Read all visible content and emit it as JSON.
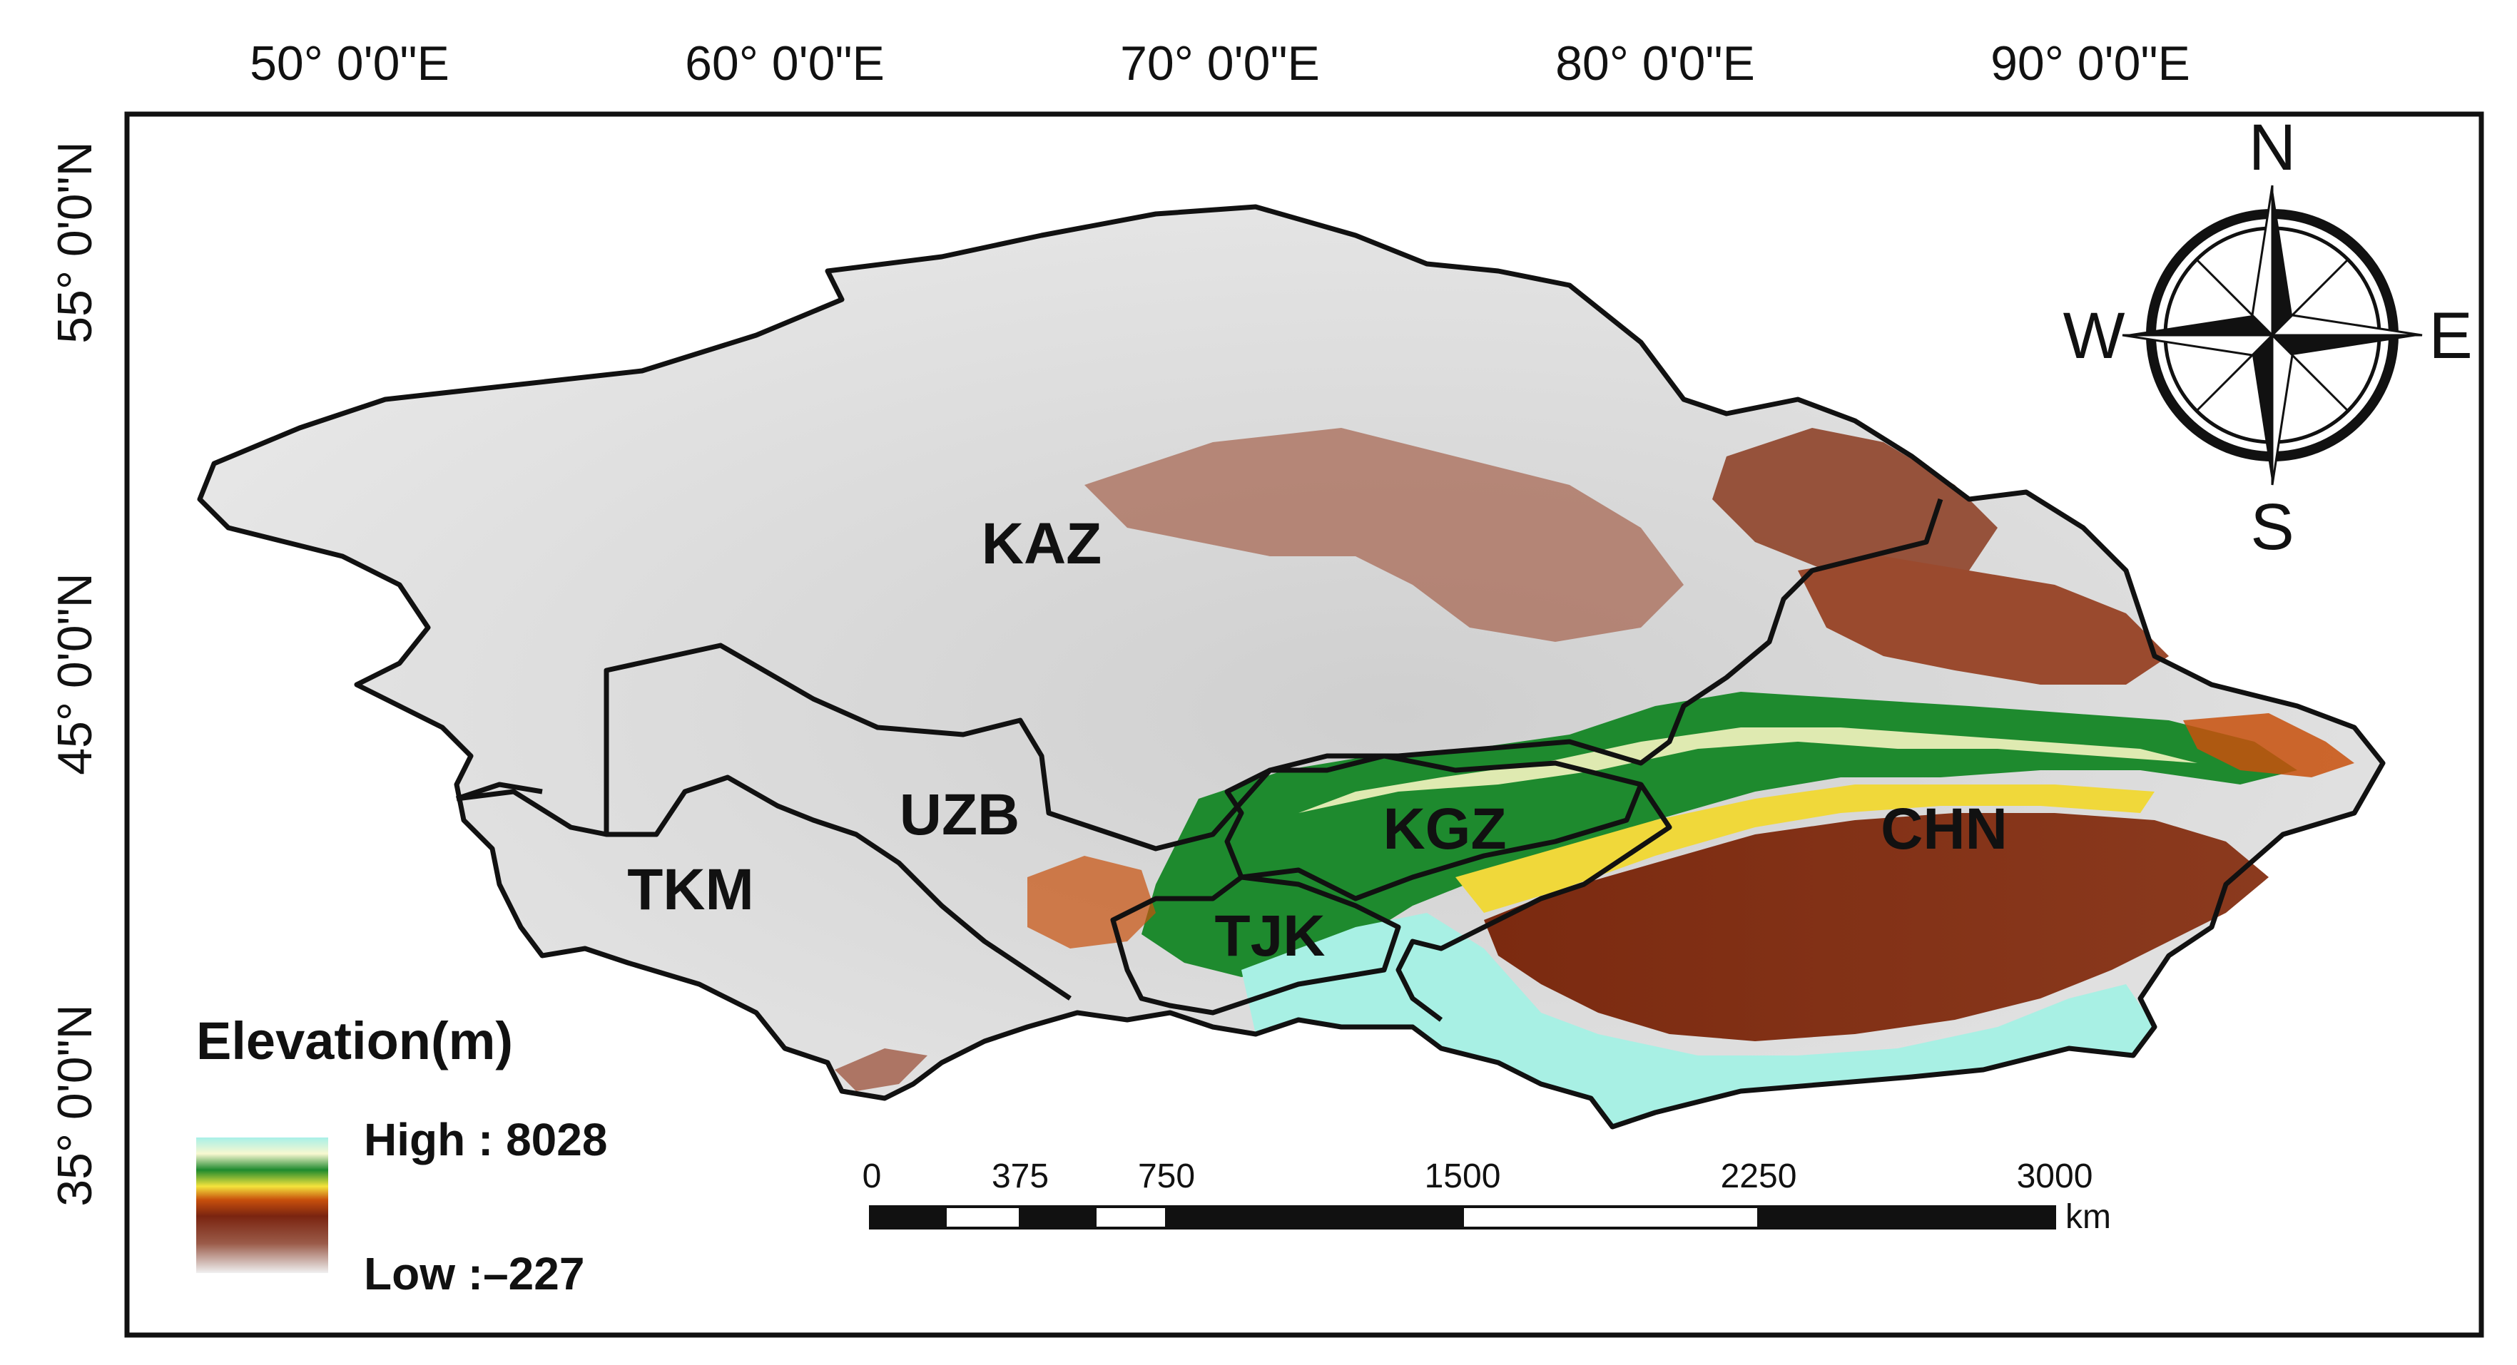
{
  "graticule": {
    "longitude_labels": [
      "50°  0'0\"E",
      "60°  0'0\"E",
      "70°  0'0\"E",
      "80°  0'0\"E",
      "90°  0'0\"E"
    ],
    "latitude_labels": [
      "55°  0'0\"N",
      "45°  0'0\"N",
      "35°  0'0\"N"
    ]
  },
  "countries": [
    {
      "code": "KAZ",
      "label": "KAZ"
    },
    {
      "code": "UZB",
      "label": "UZB"
    },
    {
      "code": "TKM",
      "label": "TKM"
    },
    {
      "code": "KGZ",
      "label": "KGZ"
    },
    {
      "code": "TJK",
      "label": "TJK"
    },
    {
      "code": "CHN",
      "label": "CHN"
    }
  ],
  "legend": {
    "title": "Elevation(m)",
    "high_label": "High : 8028",
    "low_label": "Low :–227",
    "colors": [
      "#a8f0e8",
      "#f8f8c8",
      "#1e8a2e",
      "#f2e23a",
      "#c84a0a",
      "#7a2410",
      "#8a3a28",
      "#e8e8e8"
    ]
  },
  "scale_bar": {
    "ticks": [
      "0",
      "375",
      "750",
      "1500",
      "2250",
      "3000"
    ],
    "unit": "km"
  },
  "compass": {
    "north": "N",
    "south": "S",
    "east": "E",
    "west": "W"
  },
  "colors": {
    "frame": "#111111",
    "land_low": "#d9d9d9",
    "land_mid": "#8a3a1e",
    "highland": "#9fe8d8",
    "basin": "#7d2a12"
  }
}
